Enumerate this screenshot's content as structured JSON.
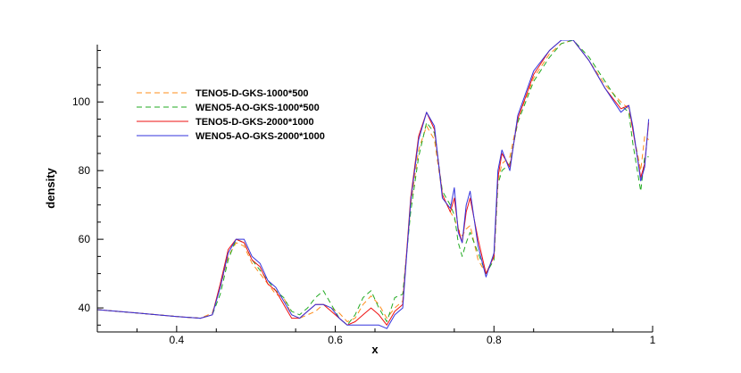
{
  "chart_data": {
    "type": "line",
    "xlabel": "x",
    "ylabel": "density",
    "xlim": [
      0.3,
      1.0
    ],
    "ylim": [
      33,
      118
    ],
    "x_ticks": [
      0.4,
      0.6,
      0.8,
      1
    ],
    "x_tick_labels": [
      "0.4",
      "0.6",
      "0.8",
      "1"
    ],
    "y_ticks": [
      40,
      60,
      80,
      100
    ],
    "y_tick_labels": [
      "40",
      "60",
      "80",
      "100"
    ],
    "grid": false,
    "legend_position": "top-left",
    "series": [
      {
        "name": "TENO5-D-GKS-1000*500",
        "color": "#ff8c1a",
        "dash": "dashed",
        "x": [
          0.3,
          0.35,
          0.4,
          0.43,
          0.445,
          0.455,
          0.465,
          0.475,
          0.485,
          0.495,
          0.505,
          0.515,
          0.525,
          0.535,
          0.545,
          0.555,
          0.565,
          0.575,
          0.585,
          0.595,
          0.605,
          0.615,
          0.625,
          0.635,
          0.645,
          0.655,
          0.665,
          0.675,
          0.685,
          0.695,
          0.705,
          0.715,
          0.725,
          0.735,
          0.745,
          0.75,
          0.755,
          0.76,
          0.765,
          0.77,
          0.78,
          0.79,
          0.8,
          0.805,
          0.81,
          0.82,
          0.83,
          0.85,
          0.87,
          0.885,
          0.9,
          0.92,
          0.94,
          0.96,
          0.97,
          0.975,
          0.985,
          0.99,
          0.995
        ],
        "y": [
          39.5,
          38.5,
          37.5,
          37,
          38.5,
          46,
          55,
          59,
          58,
          53,
          50,
          47,
          44,
          43,
          38,
          37,
          38,
          39,
          41,
          40,
          38.5,
          36,
          37,
          41,
          43.5,
          41,
          37,
          40,
          42,
          70,
          86,
          93,
          89,
          73,
          68,
          66,
          63,
          61,
          63,
          64,
          54,
          50,
          55,
          77,
          82,
          84,
          95,
          107,
          114,
          117,
          118,
          112,
          105,
          100,
          98,
          92,
          80,
          90,
          89
        ]
      },
      {
        "name": "WENO5-AO-GKS-1000*500",
        "color": "#22aa22",
        "dash": "dashed",
        "x": [
          0.3,
          0.35,
          0.4,
          0.43,
          0.445,
          0.455,
          0.465,
          0.475,
          0.485,
          0.495,
          0.505,
          0.515,
          0.525,
          0.535,
          0.545,
          0.555,
          0.565,
          0.575,
          0.585,
          0.595,
          0.605,
          0.615,
          0.625,
          0.635,
          0.645,
          0.655,
          0.665,
          0.675,
          0.685,
          0.695,
          0.705,
          0.715,
          0.725,
          0.735,
          0.745,
          0.75,
          0.755,
          0.76,
          0.765,
          0.77,
          0.78,
          0.79,
          0.8,
          0.805,
          0.81,
          0.82,
          0.83,
          0.85,
          0.87,
          0.885,
          0.9,
          0.92,
          0.94,
          0.96,
          0.97,
          0.975,
          0.985,
          0.99,
          0.995
        ],
        "y": [
          39.5,
          38.5,
          37.5,
          37,
          38,
          44,
          54,
          60,
          59,
          54,
          51,
          48,
          45,
          43,
          39,
          38,
          40,
          43,
          45,
          41,
          37,
          35,
          38,
          43,
          45,
          40,
          36,
          43,
          44,
          68,
          84,
          94,
          91,
          74,
          70,
          67,
          59,
          55,
          59,
          62,
          56,
          50,
          54,
          76,
          80,
          82,
          94,
          106,
          113,
          117,
          118,
          113,
          106,
          99,
          97,
          88,
          74,
          84,
          84
        ]
      },
      {
        "name": "TENO5-D-GKS-2000*1000",
        "color": "#ee1111",
        "dash": "solid",
        "x": [
          0.3,
          0.35,
          0.4,
          0.43,
          0.445,
          0.455,
          0.465,
          0.475,
          0.485,
          0.495,
          0.505,
          0.515,
          0.525,
          0.535,
          0.545,
          0.555,
          0.565,
          0.575,
          0.585,
          0.595,
          0.605,
          0.615,
          0.625,
          0.635,
          0.645,
          0.655,
          0.665,
          0.675,
          0.685,
          0.695,
          0.705,
          0.715,
          0.725,
          0.735,
          0.745,
          0.75,
          0.755,
          0.76,
          0.765,
          0.77,
          0.78,
          0.79,
          0.8,
          0.805,
          0.81,
          0.82,
          0.83,
          0.85,
          0.87,
          0.885,
          0.9,
          0.92,
          0.94,
          0.96,
          0.97,
          0.975,
          0.985,
          0.99,
          0.995
        ],
        "y": [
          39.5,
          38.5,
          37.5,
          37,
          38,
          47,
          57,
          60,
          59,
          54,
          52,
          47,
          45,
          41,
          37,
          37,
          39,
          41,
          41,
          39,
          37,
          35,
          36,
          38,
          40,
          38,
          35,
          39,
          41,
          72,
          90,
          97,
          92,
          73,
          68,
          72,
          63,
          59,
          68,
          72,
          60,
          50,
          55,
          78,
          85,
          81,
          95,
          108,
          115,
          118,
          118,
          112,
          104,
          98,
          99,
          92,
          78,
          82,
          94
        ]
      },
      {
        "name": "WENO5-AO-GKS-2000*1000",
        "color": "#3333dd",
        "dash": "solid",
        "x": [
          0.3,
          0.35,
          0.4,
          0.43,
          0.445,
          0.455,
          0.465,
          0.475,
          0.485,
          0.495,
          0.505,
          0.515,
          0.525,
          0.535,
          0.545,
          0.555,
          0.565,
          0.575,
          0.585,
          0.595,
          0.605,
          0.615,
          0.625,
          0.635,
          0.645,
          0.655,
          0.665,
          0.675,
          0.685,
          0.695,
          0.705,
          0.715,
          0.725,
          0.735,
          0.745,
          0.75,
          0.755,
          0.76,
          0.765,
          0.77,
          0.78,
          0.79,
          0.8,
          0.805,
          0.81,
          0.82,
          0.83,
          0.85,
          0.87,
          0.885,
          0.9,
          0.92,
          0.94,
          0.96,
          0.97,
          0.975,
          0.985,
          0.99,
          0.995
        ],
        "y": [
          39.5,
          38.5,
          37.5,
          37,
          38,
          46,
          56,
          60,
          60,
          55,
          53,
          48,
          46,
          42,
          38,
          37,
          39,
          41,
          41,
          40,
          37,
          35,
          35,
          35,
          35,
          35,
          34,
          38,
          40,
          71,
          89,
          97,
          93,
          72,
          69,
          75,
          62,
          59,
          70,
          74,
          58,
          49,
          56,
          80,
          86,
          80,
          96,
          109,
          115,
          118,
          118,
          112,
          104,
          97,
          99,
          93,
          77,
          81,
          95
        ]
      }
    ]
  }
}
